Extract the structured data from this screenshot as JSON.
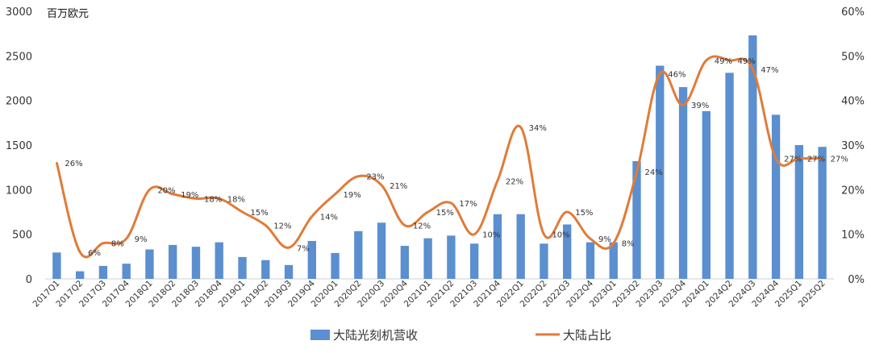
{
  "chart_data": {
    "type": "bar",
    "unit_label": "百万欧元",
    "categories": [
      "2017Q1",
      "2017Q2",
      "2017Q3",
      "2017Q4",
      "2018Q1",
      "2018Q2",
      "2018Q3",
      "2018Q4",
      "2019Q1",
      "2019Q2",
      "2019Q3",
      "2019Q4",
      "2020Q1",
      "2020Q2",
      "2020Q3",
      "2020Q4",
      "2021Q1",
      "2021Q2",
      "2021Q3",
      "2021Q4",
      "2022Q1",
      "2022Q2",
      "2022Q3",
      "2022Q4",
      "2023Q1",
      "2023Q2",
      "2023Q3",
      "2023Q4",
      "2024Q1",
      "2024Q2",
      "2024Q3",
      "2024Q4",
      "2025Q1",
      "2025Q2"
    ],
    "series": [
      {
        "name": "大陆光刻机营收",
        "type": "bar",
        "axis": "left",
        "color": "#5B8FCF",
        "values": [
          295,
          85,
          145,
          170,
          330,
          380,
          360,
          410,
          245,
          210,
          155,
          425,
          290,
          535,
          630,
          370,
          455,
          485,
          395,
          725,
          725,
          395,
          610,
          410,
          410,
          1320,
          2390,
          2150,
          1880,
          2310,
          2730,
          1840,
          1500,
          1480
        ]
      },
      {
        "name": "大陆占比",
        "type": "line",
        "axis": "right",
        "color": "#E07B39",
        "values": [
          26,
          6,
          8,
          9,
          20,
          19,
          18,
          18,
          15,
          12,
          7,
          14,
          19,
          23,
          21,
          12,
          15,
          17,
          10,
          22,
          34,
          10,
          15,
          9,
          8,
          24,
          46,
          39,
          49,
          49,
          47,
          27,
          27,
          27
        ],
        "labels": [
          "26%",
          "6%",
          "8%",
          "9%",
          "20%",
          "19%",
          "18%",
          "18%",
          "15%",
          "12%",
          "7%",
          "14%",
          "19%",
          "23%",
          "21%",
          "12%",
          "15%",
          "17%",
          "10%",
          "22%",
          "34%",
          "10%",
          "15%",
          "9%",
          "8%",
          "24%",
          "46%",
          "39%",
          "49%",
          "49%",
          "47%",
          "27%",
          "27%",
          "27%"
        ]
      }
    ],
    "left_axis": {
      "min": 0,
      "max": 3000,
      "ticks": [
        "0",
        "500",
        "1000",
        "1500",
        "2000",
        "2500",
        "3000"
      ]
    },
    "right_axis": {
      "min": 0,
      "max": 60,
      "ticks": [
        "0%",
        "10%",
        "20%",
        "30%",
        "40%",
        "50%",
        "60%"
      ]
    },
    "grid": false,
    "legend_position": "bottom"
  }
}
